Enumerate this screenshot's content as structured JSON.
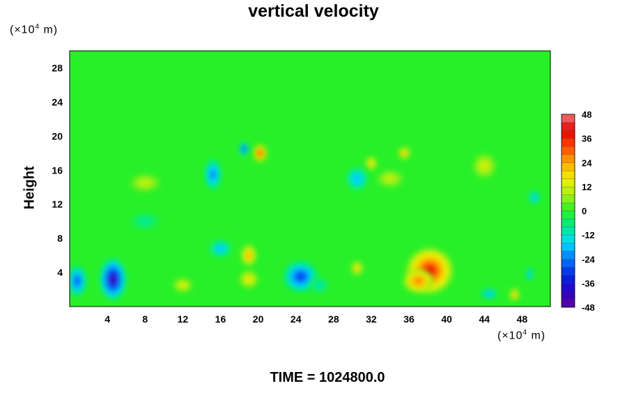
{
  "chart_data": {
    "type": "heatmap",
    "title": "vertical velocity",
    "ylabel": "Height",
    "xlabel": "",
    "x_unit": {
      "prefix": "(×10",
      "exp": "4",
      "suffix": " m)"
    },
    "y_unit": {
      "prefix": "(×10",
      "exp": "4",
      "suffix": " m)"
    },
    "xlim": [
      0,
      51
    ],
    "ylim": [
      0,
      30
    ],
    "xticks": [
      4,
      8,
      12,
      16,
      20,
      24,
      28,
      32,
      36,
      40,
      44,
      48
    ],
    "yticks": [
      4,
      8,
      12,
      16,
      20,
      24,
      28
    ],
    "colorbar": {
      "min": -48,
      "max": 48,
      "step": 4,
      "ticks": [
        48,
        36,
        24,
        12,
        0,
        -12,
        -24,
        -36,
        -48
      ]
    },
    "background_value": 0,
    "features": [
      {
        "x": 38.2,
        "y": 4.2,
        "value": 40,
        "rx": 2.4,
        "ry": 2.6
      },
      {
        "x": 37.0,
        "y": 3.0,
        "value": 30,
        "rx": 1.6,
        "ry": 1.4
      },
      {
        "x": 4.6,
        "y": 3.2,
        "value": -44,
        "rx": 1.4,
        "ry": 2.4
      },
      {
        "x": 0.8,
        "y": 3.0,
        "value": -30,
        "rx": 1.0,
        "ry": 1.8
      },
      {
        "x": 24.5,
        "y": 3.5,
        "value": -32,
        "rx": 1.8,
        "ry": 1.8
      },
      {
        "x": 19.0,
        "y": 6.0,
        "value": 26,
        "rx": 0.8,
        "ry": 1.2
      },
      {
        "x": 19.0,
        "y": 3.2,
        "value": 18,
        "rx": 1.0,
        "ry": 1.0
      },
      {
        "x": 30.5,
        "y": 4.5,
        "value": 22,
        "rx": 0.6,
        "ry": 0.8
      },
      {
        "x": 20.2,
        "y": 18.0,
        "value": 38,
        "rx": 0.7,
        "ry": 1.0
      },
      {
        "x": 18.5,
        "y": 18.5,
        "value": -34,
        "rx": 0.5,
        "ry": 0.8
      },
      {
        "x": 15.2,
        "y": 15.5,
        "value": -26,
        "rx": 0.9,
        "ry": 1.8
      },
      {
        "x": 12.0,
        "y": 2.5,
        "value": 16,
        "rx": 1.0,
        "ry": 0.8
      },
      {
        "x": 16.0,
        "y": 6.8,
        "value": -20,
        "rx": 1.2,
        "ry": 1.0
      },
      {
        "x": 32.0,
        "y": 16.8,
        "value": 20,
        "rx": 0.6,
        "ry": 0.8
      },
      {
        "x": 30.5,
        "y": 15.0,
        "value": -20,
        "rx": 1.2,
        "ry": 1.4
      },
      {
        "x": 35.5,
        "y": 18.0,
        "value": 26,
        "rx": 0.6,
        "ry": 0.7
      },
      {
        "x": 44.5,
        "y": 1.5,
        "value": -22,
        "rx": 0.9,
        "ry": 0.6
      },
      {
        "x": 47.2,
        "y": 1.4,
        "value": 26,
        "rx": 0.5,
        "ry": 0.7
      },
      {
        "x": 48.8,
        "y": 3.8,
        "value": -20,
        "rx": 0.4,
        "ry": 0.8
      },
      {
        "x": 49.3,
        "y": 12.8,
        "value": -20,
        "rx": 0.6,
        "ry": 0.8
      },
      {
        "x": 44.0,
        "y": 16.5,
        "value": 14,
        "rx": 1.2,
        "ry": 1.4
      },
      {
        "x": 26.5,
        "y": 2.5,
        "value": -12,
        "rx": 1.0,
        "ry": 1.0
      },
      {
        "x": 34.0,
        "y": 15.0,
        "value": 12,
        "rx": 1.4,
        "ry": 1.0
      },
      {
        "x": 8.0,
        "y": 14.5,
        "value": 12,
        "rx": 1.6,
        "ry": 1.0
      },
      {
        "x": 8.0,
        "y": 10.0,
        "value": -10,
        "rx": 1.6,
        "ry": 1.0
      }
    ]
  },
  "footer": {
    "time_label": "TIME = 1024800.0"
  }
}
